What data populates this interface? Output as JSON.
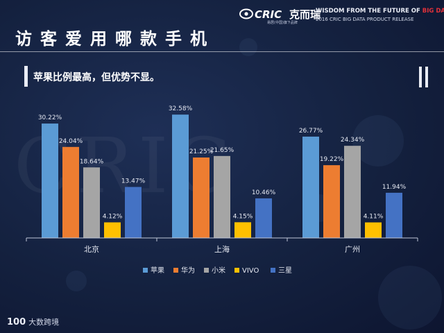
{
  "header": {
    "title": "访客爱用哪款手机",
    "subtitle": "苹果比例最高，但优势不显。"
  },
  "brand": {
    "logo_text": "CRIC",
    "name_cn": "克而瑞",
    "tagline_main": "WISDOM FROM THE FUTURE OF ",
    "tagline_highlight": "BIG DATA",
    "tagline_sub": "2016 CRIC BIG DATA PRODUCT RELEASE",
    "mini_text": "易居(中国)旗下品牌",
    "highlight_color": "#e2313a"
  },
  "watermark": "CRIC",
  "footer": {
    "logo_num": "100",
    "logo_text": "大数跨境"
  },
  "chart_data": {
    "type": "bar",
    "categories": [
      "北京",
      "上海",
      "广州"
    ],
    "series": [
      {
        "name": "苹果",
        "color": "#5b9bd5",
        "values": [
          30.22,
          32.58,
          26.77
        ],
        "labels": [
          "30.22%",
          "32.58%",
          "26.77%"
        ]
      },
      {
        "name": "华为",
        "color": "#ed7d31",
        "values": [
          24.04,
          21.25,
          19.22
        ],
        "labels": [
          "24.04%",
          "21.25%",
          "19.22%"
        ]
      },
      {
        "name": "小米",
        "color": "#a5a5a5",
        "values": [
          18.64,
          21.65,
          24.34
        ],
        "labels": [
          "18.64%",
          "21.65%",
          "24.34%"
        ]
      },
      {
        "name": "VIVO",
        "color": "#ffc000",
        "values": [
          4.12,
          4.15,
          4.11
        ],
        "labels": [
          "4.12%",
          "4.15%",
          "4.11%"
        ]
      },
      {
        "name": "三星",
        "color": "#4472c4",
        "values": [
          13.47,
          10.46,
          11.94
        ],
        "labels": [
          "13.47%",
          "10.46%",
          "11.94%"
        ]
      }
    ],
    "ylim": [
      0,
      35
    ],
    "legend_position": "bottom",
    "grid": false
  }
}
